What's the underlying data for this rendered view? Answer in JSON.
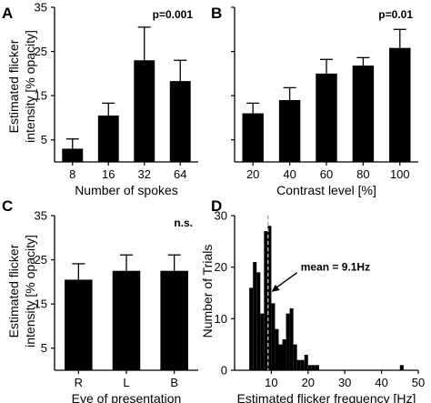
{
  "chart_data": [
    {
      "panel": "A",
      "type": "bar",
      "categories": [
        "8",
        "16",
        "32",
        "64"
      ],
      "values": [
        3,
        10.5,
        23,
        18.3
      ],
      "errors": [
        2.2,
        2.8,
        7.5,
        4.7
      ],
      "xlabel": "Number of spokes",
      "ylabel": "Estimated flicker intensity [% opacity]",
      "ylabel_lines": [
        "Estimated flicker",
        "intensity [% opacity]"
      ],
      "ylim": [
        0,
        35
      ],
      "yticks": [
        "5",
        "15",
        "25",
        "35"
      ],
      "annotation": "p=0.001",
      "bar_color": "#000000"
    },
    {
      "panel": "B",
      "type": "bar",
      "categories": [
        "20",
        "40",
        "60",
        "80",
        "100"
      ],
      "values": [
        11,
        14,
        20,
        21.8,
        25.8
      ],
      "errors": [
        2.3,
        2.8,
        3.2,
        1.8,
        4.2
      ],
      "xlabel": "Contrast level [%]",
      "ylim": [
        0,
        35
      ],
      "annotation": "p=0.01",
      "bar_color": "#000000"
    },
    {
      "panel": "C",
      "type": "bar",
      "categories": [
        "R",
        "L",
        "B"
      ],
      "values": [
        20.5,
        22.5,
        22.5
      ],
      "errors": [
        3.6,
        3.6,
        3.6
      ],
      "xlabel": "Eye of presentation",
      "ylabel": "Estimated flicker intensity [% opacity]",
      "ylabel_lines": [
        "Estimated flicker",
        "intensity [% opacity]"
      ],
      "ylim": [
        0,
        35
      ],
      "yticks": [
        "5",
        "15",
        "25",
        "35"
      ],
      "annotation": "n.s.",
      "bar_color": "#000000"
    },
    {
      "panel": "D",
      "type": "bar",
      "subtype": "histogram",
      "x": [
        4.5,
        5.5,
        6.5,
        7.5,
        8.5,
        9.5,
        10.5,
        11.5,
        12.5,
        13.5,
        14.5,
        15.5,
        16.5,
        17.5,
        18.5,
        19.5,
        20.5,
        21.5,
        22.5,
        45.5
      ],
      "values": [
        16,
        21,
        19,
        11,
        27,
        28,
        13,
        8,
        5,
        6,
        11,
        12,
        5,
        2,
        2,
        3,
        1,
        1,
        1,
        1
      ],
      "bin_width": 1,
      "xlabel": "Estimated flicker frequency [Hz]",
      "ylabel": "Number of Trials",
      "xlim": [
        0,
        50
      ],
      "ylim": [
        0,
        30
      ],
      "xticks": [
        "10",
        "20",
        "30",
        "40",
        "50"
      ],
      "yticks": [
        "0",
        "10",
        "20",
        "30"
      ],
      "mean_line": 9.1,
      "annotation": "mean = 9.1Hz",
      "bar_color": "#000000",
      "mean_line_color": "#b0b0b0"
    }
  ],
  "panel_letters": [
    "A",
    "B",
    "C",
    "D"
  ]
}
